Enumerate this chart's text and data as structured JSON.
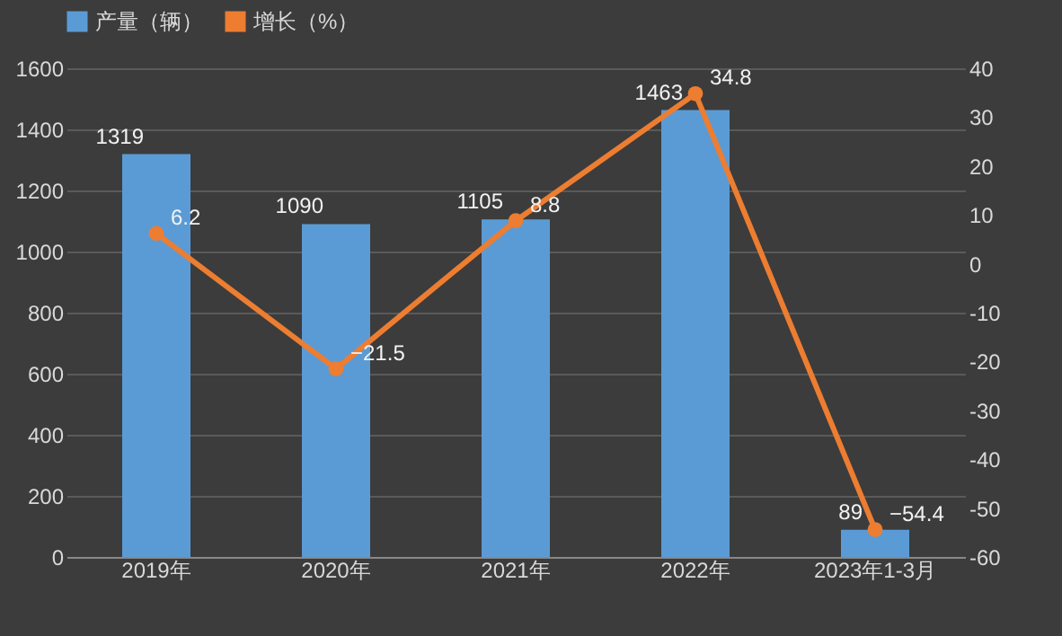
{
  "chart_data": {
    "type": "bar",
    "categories": [
      "2019年",
      "2020年",
      "2021年",
      "2022年",
      "2023年1-3月"
    ],
    "series": [
      {
        "name": "产量（辆）",
        "color": "#5b9bd5",
        "values": [
          1319,
          1090,
          1105,
          1463,
          89
        ]
      },
      {
        "name": "增长（%）",
        "type": "line",
        "axis": "y2",
        "color": "#ed7d31",
        "marker": "circle",
        "values": [
          6.2,
          -21.5,
          8.8,
          34.8,
          -54.4
        ]
      }
    ],
    "ylim": [
      0,
      1600
    ],
    "yticks": [
      0,
      200,
      400,
      600,
      800,
      1000,
      1200,
      1400,
      1600
    ],
    "y2lim": [
      -60,
      40
    ],
    "y2ticks": [
      -60,
      -50,
      -40,
      -30,
      -20,
      -10,
      0,
      10,
      20,
      30,
      40
    ],
    "grid": "y",
    "legend": "top",
    "data_labels": true
  }
}
